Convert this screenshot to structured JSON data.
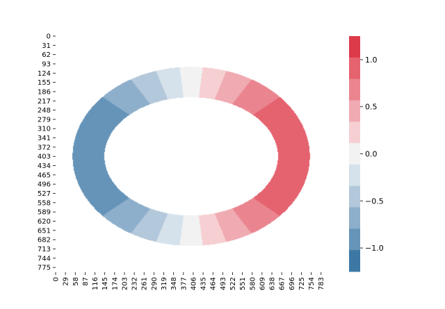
{
  "chart_data": {
    "type": "heatmap",
    "title": "",
    "xlabel": "",
    "ylabel": "",
    "x_tick_labels": [
      "0",
      "29",
      "58",
      "87",
      "116",
      "145",
      "174",
      "203",
      "232",
      "261",
      "290",
      "319",
      "348",
      "377",
      "406",
      "435",
      "464",
      "493",
      "522",
      "551",
      "580",
      "609",
      "638",
      "667",
      "696",
      "725",
      "754",
      "783"
    ],
    "y_tick_labels": [
      "0",
      "31",
      "62",
      "93",
      "124",
      "155",
      "186",
      "217",
      "248",
      "279",
      "310",
      "341",
      "372",
      "403",
      "434",
      "465",
      "496",
      "527",
      "558",
      "589",
      "620",
      "651",
      "682",
      "713",
      "744",
      "775"
    ],
    "x_range": [
      0,
      800
    ],
    "y_range": [
      0,
      791
    ],
    "field": {
      "shape": "annulus",
      "center_x": 400,
      "center_y": 403,
      "outer_semi_axis_x": 350,
      "outer_semi_axis_y": 300,
      "inner_semi_axis_x": 256,
      "inner_semi_axis_y": 198,
      "value_expression": "cos(angle) with angle measured from the center; right side positive, left side negative",
      "value_range": [
        -1.25,
        1.25
      ]
    },
    "colorbar": {
      "range": [
        -1.25,
        1.25
      ],
      "tick_values": [
        1.0,
        0.5,
        0.0,
        -0.5,
        -1.0
      ],
      "tick_labels": [
        "1.0",
        "0.5",
        "0.0",
        "−0.5",
        "−1.0"
      ],
      "colors": [
        "#3d78a5",
        "#6694b9",
        "#8eafcb",
        "#b3c8da",
        "#d5e1eb",
        "#f2f2f2",
        "#f6cfd3",
        "#f0aab1",
        "#ea858f",
        "#e4636f",
        "#dd3a4a"
      ]
    }
  }
}
